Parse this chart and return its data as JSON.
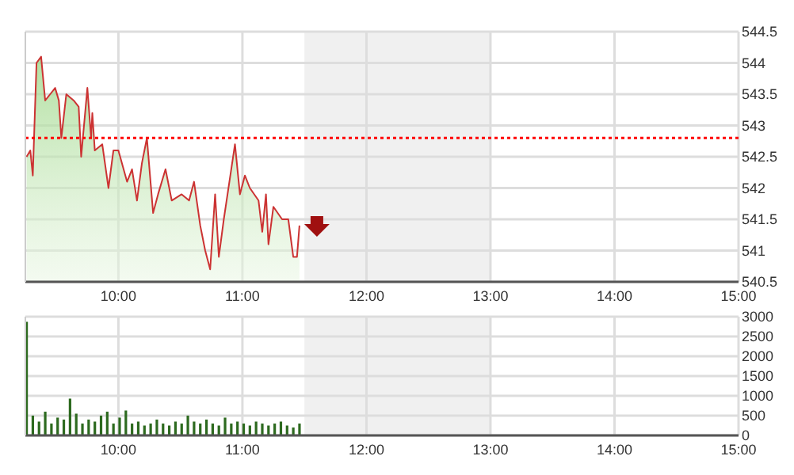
{
  "chart_data": [
    {
      "type": "area",
      "x": [
        9.26,
        9.29,
        9.31,
        9.34,
        9.377,
        9.41,
        9.45,
        9.49,
        9.52,
        9.54,
        9.58,
        9.64,
        9.68,
        9.7,
        9.75,
        9.78,
        9.79,
        9.81,
        9.87,
        9.92,
        9.96,
        10.0,
        10.07,
        10.11,
        10.15,
        10.19,
        10.23,
        10.28,
        10.32,
        10.38,
        10.43,
        10.51,
        10.57,
        10.61,
        10.66,
        10.7,
        10.74,
        10.78,
        10.81,
        10.85,
        10.91,
        10.94,
        10.98,
        11.02,
        11.06,
        11.13,
        11.16,
        11.19,
        11.21,
        11.25,
        11.32,
        11.37,
        11.41,
        11.44,
        11.46
      ],
      "series": [
        {
          "color": "#cc3333",
          "values": [
            542.5,
            542.6,
            542.2,
            544.0,
            544.1,
            543.4,
            543.5,
            543.6,
            543.4,
            542.8,
            543.5,
            543.4,
            543.3,
            542.5,
            543.6,
            542.8,
            543.2,
            542.6,
            542.7,
            542.0,
            542.6,
            542.6,
            542.1,
            542.3,
            541.8,
            542.4,
            542.8,
            541.6,
            541.9,
            542.3,
            541.8,
            541.9,
            541.8,
            542.1,
            541.4,
            541.0,
            540.7,
            541.9,
            540.9,
            541.5,
            542.3,
            542.7,
            541.9,
            542.2,
            542.0,
            541.8,
            541.3,
            541.9,
            541.1,
            541.7,
            541.5,
            541.5,
            540.9,
            540.9,
            541.4
          ]
        }
      ],
      "xlim": [
        9.25,
        15
      ],
      "xticks": [
        {
          "value": 10,
          "label": "10:00"
        },
        {
          "value": 11,
          "label": "11:00"
        },
        {
          "value": 12,
          "label": "12:00"
        },
        {
          "value": 13,
          "label": "13:00"
        },
        {
          "value": 14,
          "label": "14:00"
        },
        {
          "value": 15,
          "label": "15:00"
        }
      ],
      "ylim": [
        540.5,
        544.5
      ],
      "yticks": [
        540.5,
        541,
        541.5,
        542,
        542.5,
        543,
        543.5,
        544,
        544.5
      ],
      "ref_lines": [
        {
          "axis": "y",
          "value": 542.8,
          "color": "#ff0000",
          "line_style": "dotted"
        }
      ],
      "bands": [
        {
          "axis": "x",
          "from": 11.5,
          "to": 13,
          "color": "#f0f0f0"
        }
      ],
      "grid": true
    },
    {
      "type": "bar",
      "x": [
        9.25,
        9.3,
        9.35,
        9.4,
        9.45,
        9.5,
        9.55,
        9.6,
        9.65,
        9.7,
        9.75,
        9.8,
        9.85,
        9.9,
        9.95,
        10.0,
        10.05,
        10.1,
        10.15,
        10.2,
        10.25,
        10.3,
        10.35,
        10.4,
        10.45,
        10.5,
        10.55,
        10.6,
        10.65,
        10.7,
        10.75,
        10.8,
        10.85,
        10.9,
        10.95,
        11.0,
        11.05,
        11.1,
        11.15,
        11.2,
        11.25,
        11.3,
        11.35,
        11.4,
        11.45
      ],
      "series": [
        {
          "color": "#2d6a1f",
          "values": [
            2870,
            500,
            350,
            600,
            300,
            450,
            400,
            930,
            550,
            300,
            400,
            350,
            500,
            600,
            300,
            450,
            630,
            300,
            350,
            250,
            300,
            400,
            300,
            250,
            350,
            300,
            500,
            350,
            300,
            400,
            300,
            250,
            450,
            300,
            350,
            300,
            250,
            350,
            300,
            250,
            300,
            350,
            250,
            200,
            300
          ]
        }
      ],
      "xlim": [
        9.25,
        15
      ],
      "xticks": [
        {
          "value": 10,
          "label": "10:00"
        },
        {
          "value": 11,
          "label": "11:00"
        },
        {
          "value": 12,
          "label": "12:00"
        },
        {
          "value": 13,
          "label": "13:00"
        },
        {
          "value": 14,
          "label": "14:00"
        },
        {
          "value": 15,
          "label": "15:00"
        }
      ],
      "ylim": [
        0,
        3000
      ],
      "yticks": [
        0,
        500,
        1000,
        1500,
        2000,
        2500,
        3000
      ],
      "bands": [
        {
          "axis": "x",
          "from": 11.5,
          "to": 13,
          "color": "#f0f0f0"
        }
      ],
      "grid": true
    }
  ]
}
